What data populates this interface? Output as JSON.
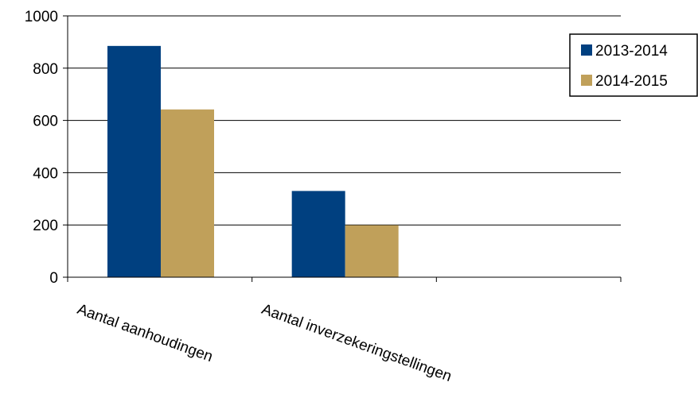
{
  "chart_data": {
    "type": "bar",
    "categories": [
      "Aantal aanhoudingen",
      "Aantal inverzekeringstellingen",
      ""
    ],
    "series": [
      {
        "name": "2013-2014",
        "values": [
          885,
          330,
          0
        ],
        "color": "#004080"
      },
      {
        "name": "2014-2015",
        "values": [
          642,
          199,
          0
        ],
        "color": "#C0A05A"
      }
    ],
    "ylim": [
      0,
      1000
    ],
    "yticks": [
      "0",
      "200",
      "400",
      "600",
      "800",
      "1000"
    ],
    "grid": true,
    "legend_position": "right",
    "title": "",
    "xlabel": "",
    "ylabel": ""
  }
}
